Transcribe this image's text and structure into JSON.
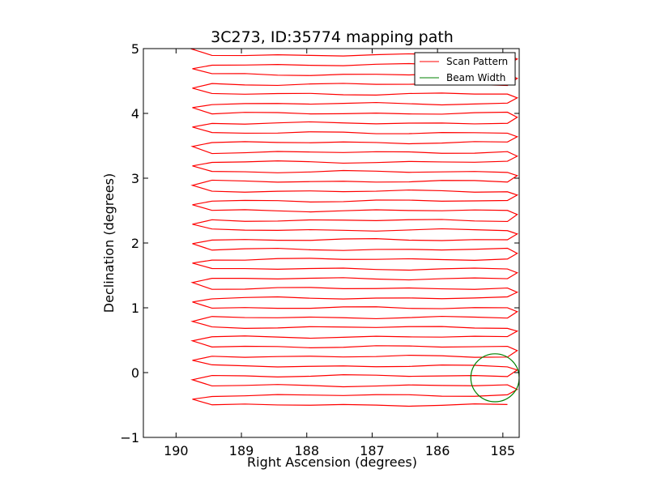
{
  "chart_data": {
    "type": "line",
    "title": "3C273, ID:35774 mapping path",
    "xlabel": "Right Ascension (degrees)",
    "ylabel": "Declination (degrees)",
    "xlim": [
      190.5,
      184.75
    ],
    "ylim": [
      -1,
      5
    ],
    "x_ticks": [
      190,
      189,
      188,
      187,
      186,
      185
    ],
    "x_tick_labels": [
      "190",
      "189",
      "188",
      "187",
      "186",
      "185"
    ],
    "y_ticks": [
      -1,
      0,
      1,
      2,
      3,
      4,
      5
    ],
    "y_tick_labels": [
      "−1",
      "0",
      "1",
      "2",
      "3",
      "4",
      "5"
    ],
    "grid": false,
    "legend_position": "upper-right",
    "series": [
      {
        "name": "Scan Pattern",
        "color": "#ff0000",
        "scan_rows": {
          "count": 38,
          "dec_start": -0.5,
          "dec_step": 0.15,
          "ra_east": 189.75,
          "ra_west": 184.78,
          "points_note_free": true
        }
      },
      {
        "name": "Beam Width",
        "color": "#008000",
        "circle": {
          "ra_center": 185.12,
          "dec_center": -0.08,
          "radius_deg": 0.37
        }
      }
    ]
  }
}
